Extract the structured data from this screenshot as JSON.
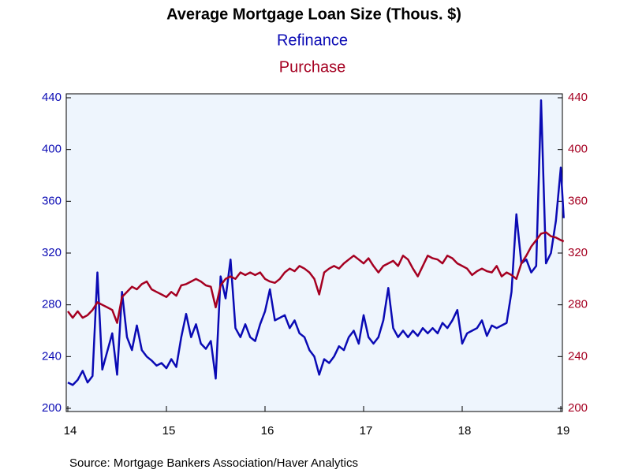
{
  "chart_data": {
    "type": "line",
    "title": "Average Mortgage Loan Size (Thous. $)",
    "source": "Source:  Mortgage Bankers Association/Haver Analytics",
    "x": [
      2014.0,
      2014.05,
      2014.1,
      2014.15,
      2014.2,
      2014.25,
      2014.3,
      2014.35,
      2014.4,
      2014.45,
      2014.5,
      2014.55,
      2014.6,
      2014.65,
      2014.7,
      2014.75,
      2014.8,
      2014.85,
      2014.9,
      2014.95,
      2015.0,
      2015.05,
      2015.1,
      2015.15,
      2015.2,
      2015.25,
      2015.3,
      2015.35,
      2015.4,
      2015.45,
      2015.5,
      2015.55,
      2015.6,
      2015.65,
      2015.7,
      2015.75,
      2015.8,
      2015.85,
      2015.9,
      2015.95,
      2016.0,
      2016.05,
      2016.1,
      2016.15,
      2016.2,
      2016.25,
      2016.3,
      2016.35,
      2016.4,
      2016.45,
      2016.5,
      2016.55,
      2016.6,
      2016.65,
      2016.7,
      2016.75,
      2016.8,
      2016.85,
      2016.9,
      2016.95,
      2017.0,
      2017.05,
      2017.1,
      2017.15,
      2017.2,
      2017.25,
      2017.3,
      2017.35,
      2017.4,
      2017.45,
      2017.5,
      2017.55,
      2017.6,
      2017.65,
      2017.7,
      2017.75,
      2017.8,
      2017.85,
      2017.9,
      2017.95,
      2018.0,
      2018.05,
      2018.1,
      2018.15,
      2018.2,
      2018.25,
      2018.3,
      2018.35,
      2018.4,
      2018.45,
      2018.5,
      2018.55,
      2018.6,
      2018.65,
      2018.7,
      2018.75,
      2018.8,
      2018.85,
      2018.9,
      2018.95,
      2019.0,
      2019.03
    ],
    "series": [
      {
        "name": "Refinance",
        "color": "#0a0ab4",
        "values": [
          220,
          218,
          222,
          229,
          220,
          225,
          305,
          230,
          244,
          258,
          226,
          290,
          255,
          245,
          264,
          245,
          240,
          237,
          233,
          235,
          231,
          238,
          232,
          255,
          273,
          255,
          265,
          250,
          246,
          252,
          223,
          302,
          285,
          315,
          262,
          255,
          265,
          255,
          252,
          265,
          275,
          292,
          268,
          270,
          272,
          262,
          268,
          258,
          255,
          245,
          240,
          226,
          238,
          235,
          240,
          248,
          245,
          255,
          260,
          250,
          272,
          255,
          250,
          255,
          268,
          293,
          262,
          255,
          260,
          255,
          260,
          256,
          262,
          258,
          262,
          258,
          266,
          262,
          268,
          276,
          250,
          258,
          260,
          262,
          268,
          256,
          264,
          262,
          264,
          266,
          290,
          350,
          312,
          315,
          305,
          310,
          438,
          312,
          320,
          345,
          386,
          347
        ]
      },
      {
        "name": "Purchase",
        "color": "#a50021",
        "axis": "y2",
        "values": [
          275,
          270,
          275,
          270,
          272,
          276,
          282,
          280,
          278,
          276,
          266,
          286,
          290,
          294,
          292,
          296,
          298,
          292,
          290,
          288,
          286,
          290,
          287,
          295,
          296,
          298,
          300,
          298,
          295,
          294,
          278,
          295,
          300,
          302,
          300,
          305,
          303,
          305,
          303,
          305,
          300,
          298,
          297,
          300,
          305,
          308,
          306,
          310,
          308,
          305,
          300,
          288,
          305,
          308,
          310,
          308,
          312,
          315,
          318,
          315,
          312,
          316,
          310,
          305,
          310,
          312,
          314,
          310,
          318,
          315,
          308,
          302,
          310,
          318,
          316,
          315,
          312,
          318,
          316,
          312,
          310,
          308,
          303,
          306,
          308,
          306,
          305,
          310,
          302,
          305,
          303,
          300,
          312,
          318,
          325,
          330,
          335,
          336,
          333,
          332,
          330,
          329
        ]
      }
    ],
    "xlim": [
      2014,
      2019
    ],
    "xticks": [
      {
        "value": 2014,
        "label": "14"
      },
      {
        "value": 2015,
        "label": "15"
      },
      {
        "value": 2016,
        "label": "16"
      },
      {
        "value": 2017,
        "label": "17"
      },
      {
        "value": 2018,
        "label": "18"
      },
      {
        "value": 2019,
        "label": "19"
      }
    ],
    "ylim": [
      200,
      440
    ],
    "yticks": [
      200,
      240,
      280,
      320,
      360,
      400,
      440
    ],
    "y2lim": [
      200,
      440
    ],
    "y2ticks": [
      200,
      240,
      280,
      320,
      360,
      400,
      440
    ],
    "background": "#eef5fd"
  }
}
